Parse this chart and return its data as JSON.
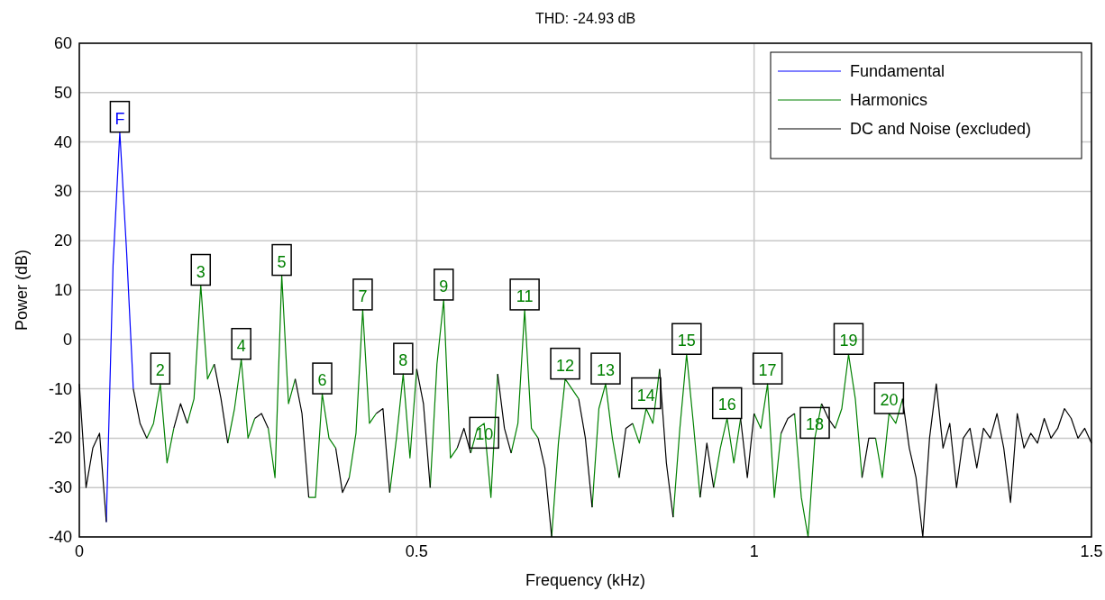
{
  "chart_data": {
    "type": "line",
    "title": "THD: -24.93 dB",
    "xlabel": "Frequency (kHz)",
    "ylabel": "Power (dB)",
    "x": [
      0,
      0.01,
      0.02,
      0.03,
      0.04,
      0.05,
      0.06,
      0.07,
      0.08,
      0.09,
      0.1,
      0.11,
      0.12,
      0.13,
      0.14,
      0.15,
      0.16,
      0.17,
      0.18,
      0.19,
      0.2,
      0.21,
      0.22,
      0.23,
      0.24,
      0.25,
      0.26,
      0.27,
      0.28,
      0.29,
      0.3,
      0.31,
      0.32,
      0.33,
      0.34,
      0.35,
      0.36,
      0.37,
      0.38,
      0.39,
      0.4,
      0.41,
      0.42,
      0.43,
      0.44,
      0.45,
      0.46,
      0.47,
      0.48,
      0.49,
      0.5,
      0.51,
      0.52,
      0.53,
      0.54,
      0.55,
      0.56,
      0.57,
      0.58,
      0.59,
      0.6,
      0.61,
      0.62,
      0.63,
      0.64,
      0.65,
      0.66,
      0.67,
      0.68,
      0.69,
      0.7,
      0.71,
      0.72,
      0.73,
      0.74,
      0.75,
      0.76,
      0.77,
      0.78,
      0.79,
      0.8,
      0.81,
      0.82,
      0.83,
      0.84,
      0.85,
      0.86,
      0.87,
      0.88,
      0.89,
      0.9,
      0.91,
      0.92,
      0.93,
      0.94,
      0.95,
      0.96,
      0.97,
      0.98,
      0.99,
      1,
      1.01,
      1.02,
      1.03,
      1.04,
      1.05,
      1.06,
      1.07,
      1.08,
      1.09,
      1.1,
      1.11,
      1.12,
      1.13,
      1.14,
      1.15,
      1.16,
      1.17,
      1.18,
      1.19,
      1.2,
      1.21,
      1.22,
      1.23,
      1.24,
      1.25,
      1.26,
      1.27,
      1.28,
      1.29,
      1.3,
      1.31,
      1.32,
      1.33,
      1.34,
      1.35,
      1.36,
      1.37,
      1.38,
      1.39,
      1.4,
      1.41,
      1.42,
      1.43,
      1.44,
      1.45,
      1.46,
      1.47,
      1.48,
      1.49,
      1.5
    ],
    "series": [
      {
        "name": "Fundamental",
        "color": "#0000ff",
        "values": [
          null,
          null,
          null,
          null,
          -37,
          15,
          42,
          18,
          -10,
          null,
          null,
          null,
          null,
          null,
          null,
          null,
          null,
          null,
          null,
          null,
          null,
          null,
          null,
          null,
          null,
          null,
          null,
          null,
          null,
          null,
          null,
          null,
          null,
          null,
          null,
          null,
          null,
          null,
          null,
          null,
          null,
          null,
          null,
          null,
          null,
          null,
          null,
          null,
          null,
          null,
          null,
          null,
          null,
          null,
          null,
          null,
          null,
          null,
          null,
          null,
          null,
          null,
          null,
          null,
          null,
          null,
          null,
          null,
          null,
          null,
          null,
          null,
          null,
          null,
          null,
          null,
          null,
          null,
          null,
          null,
          null,
          null,
          null,
          null,
          null,
          null,
          null,
          null,
          null,
          null,
          null,
          null,
          null,
          null,
          null,
          null,
          null,
          null,
          null,
          null,
          null,
          null,
          null,
          null,
          null,
          null,
          null,
          null,
          null,
          null,
          null,
          null,
          null,
          null,
          null,
          null,
          null,
          null,
          null,
          null,
          null,
          null,
          null,
          null,
          null,
          null,
          null,
          null,
          null,
          null,
          null,
          null,
          null,
          null,
          null,
          null,
          null,
          null,
          null,
          null,
          null,
          null,
          null,
          null,
          null,
          null,
          null,
          null,
          null,
          null,
          null
        ]
      },
      {
        "name": "Harmonics",
        "color": "#008000",
        "values": [
          null,
          null,
          null,
          null,
          null,
          null,
          null,
          null,
          null,
          null,
          -20,
          -17,
          -9,
          -25,
          -18,
          null,
          -17,
          -12,
          11,
          -8,
          -5,
          null,
          -21,
          -14,
          -4,
          -20,
          -16,
          null,
          -18,
          -28,
          13,
          -13,
          -8,
          null,
          -32,
          -32,
          -11,
          -20,
          -22,
          null,
          -28,
          -19,
          6,
          -17,
          -15,
          null,
          -31,
          -20,
          -7,
          -24,
          -6,
          null,
          -30,
          -5,
          8,
          -24,
          -22,
          null,
          -23,
          -18,
          -17,
          -32,
          -7,
          null,
          -23,
          -17,
          6,
          -18,
          -20,
          null,
          -40,
          -21,
          -8,
          -10,
          -12,
          null,
          -34,
          -14,
          -9,
          -20,
          -28,
          null,
          -17,
          -21,
          -14,
          -17,
          -6,
          null,
          -36,
          -18,
          -3,
          -17,
          -32,
          null,
          -30,
          -22,
          -16,
          -25,
          -16,
          null,
          -15,
          -18,
          -9,
          -32,
          -19,
          null,
          -15,
          -32,
          -40,
          -20,
          -13,
          null,
          -18,
          -14,
          -3,
          -12,
          -28,
          null,
          -20,
          -28,
          -15,
          -17,
          -12,
          null,
          null,
          null,
          null,
          null,
          null,
          null,
          null,
          null,
          null,
          null,
          null,
          null,
          null,
          null,
          null,
          null,
          null,
          null,
          null,
          null,
          null,
          null,
          null,
          null,
          null,
          null,
          null
        ]
      },
      {
        "name": "DC and Noise (excluded)",
        "color": "#000000",
        "values": [
          -9,
          -30,
          -22,
          -19,
          -37,
          null,
          null,
          null,
          -10,
          -17,
          -20,
          null,
          null,
          null,
          -18,
          -13,
          -17,
          null,
          null,
          null,
          -5,
          -12,
          -21,
          null,
          null,
          null,
          -16,
          -15,
          -18,
          null,
          null,
          null,
          -8,
          -15,
          -32,
          null,
          null,
          null,
          -22,
          -31,
          -28,
          null,
          null,
          null,
          -15,
          -14,
          -31,
          null,
          null,
          null,
          -6,
          -13,
          -30,
          null,
          null,
          null,
          -22,
          -18,
          -23,
          null,
          null,
          null,
          -7,
          -18,
          -23,
          null,
          null,
          null,
          -20,
          -26,
          -40,
          null,
          null,
          null,
          -12,
          -20,
          -34,
          null,
          null,
          null,
          -28,
          -18,
          -17,
          null,
          null,
          null,
          -6,
          -25,
          -36,
          null,
          null,
          null,
          -32,
          -21,
          -30,
          null,
          null,
          null,
          -16,
          -28,
          -15,
          null,
          null,
          null,
          -19,
          -16,
          -15,
          null,
          null,
          null,
          -13,
          -16,
          -18,
          null,
          null,
          null,
          -28,
          -20,
          -20,
          null,
          null,
          null,
          -12,
          -22,
          -28,
          -40,
          -20,
          -9,
          -22,
          -17,
          -30,
          -20,
          -18,
          -26,
          -18,
          -20,
          -15,
          -22,
          -33,
          -15,
          -22,
          -19,
          -21,
          -16,
          -20,
          -18,
          -14,
          -16,
          -20,
          -18,
          -21
        ]
      }
    ],
    "annotations": [
      {
        "text": "F",
        "x": 0.06,
        "y": 42
      },
      {
        "text": "2",
        "x": 0.12,
        "y": -9
      },
      {
        "text": "3",
        "x": 0.18,
        "y": 11
      },
      {
        "text": "4",
        "x": 0.24,
        "y": -4
      },
      {
        "text": "5",
        "x": 0.3,
        "y": 13
      },
      {
        "text": "6",
        "x": 0.36,
        "y": -11
      },
      {
        "text": "7",
        "x": 0.42,
        "y": 6
      },
      {
        "text": "8",
        "x": 0.48,
        "y": -7
      },
      {
        "text": "9",
        "x": 0.54,
        "y": 8
      },
      {
        "text": "10",
        "x": 0.6,
        "y": -22
      },
      {
        "text": "11",
        "x": 0.66,
        "y": 6
      },
      {
        "text": "12",
        "x": 0.72,
        "y": -8
      },
      {
        "text": "13",
        "x": 0.78,
        "y": -9
      },
      {
        "text": "14",
        "x": 0.84,
        "y": -14
      },
      {
        "text": "15",
        "x": 0.9,
        "y": -3
      },
      {
        "text": "16",
        "x": 0.96,
        "y": -16
      },
      {
        "text": "17",
        "x": 1.02,
        "y": -9
      },
      {
        "text": "18",
        "x": 1.09,
        "y": -20
      },
      {
        "text": "19",
        "x": 1.14,
        "y": -3
      },
      {
        "text": "20",
        "x": 1.2,
        "y": -15
      }
    ],
    "xlim": [
      0,
      1.5
    ],
    "xticks": [
      0,
      0.5,
      1,
      1.5
    ],
    "ylim": [
      -40,
      60
    ],
    "yticks": [
      -40,
      -30,
      -20,
      -10,
      0,
      10,
      20,
      30,
      40,
      50,
      60
    ],
    "grid": true,
    "legend": "top right",
    "marker": "none",
    "line_style": "solid"
  }
}
